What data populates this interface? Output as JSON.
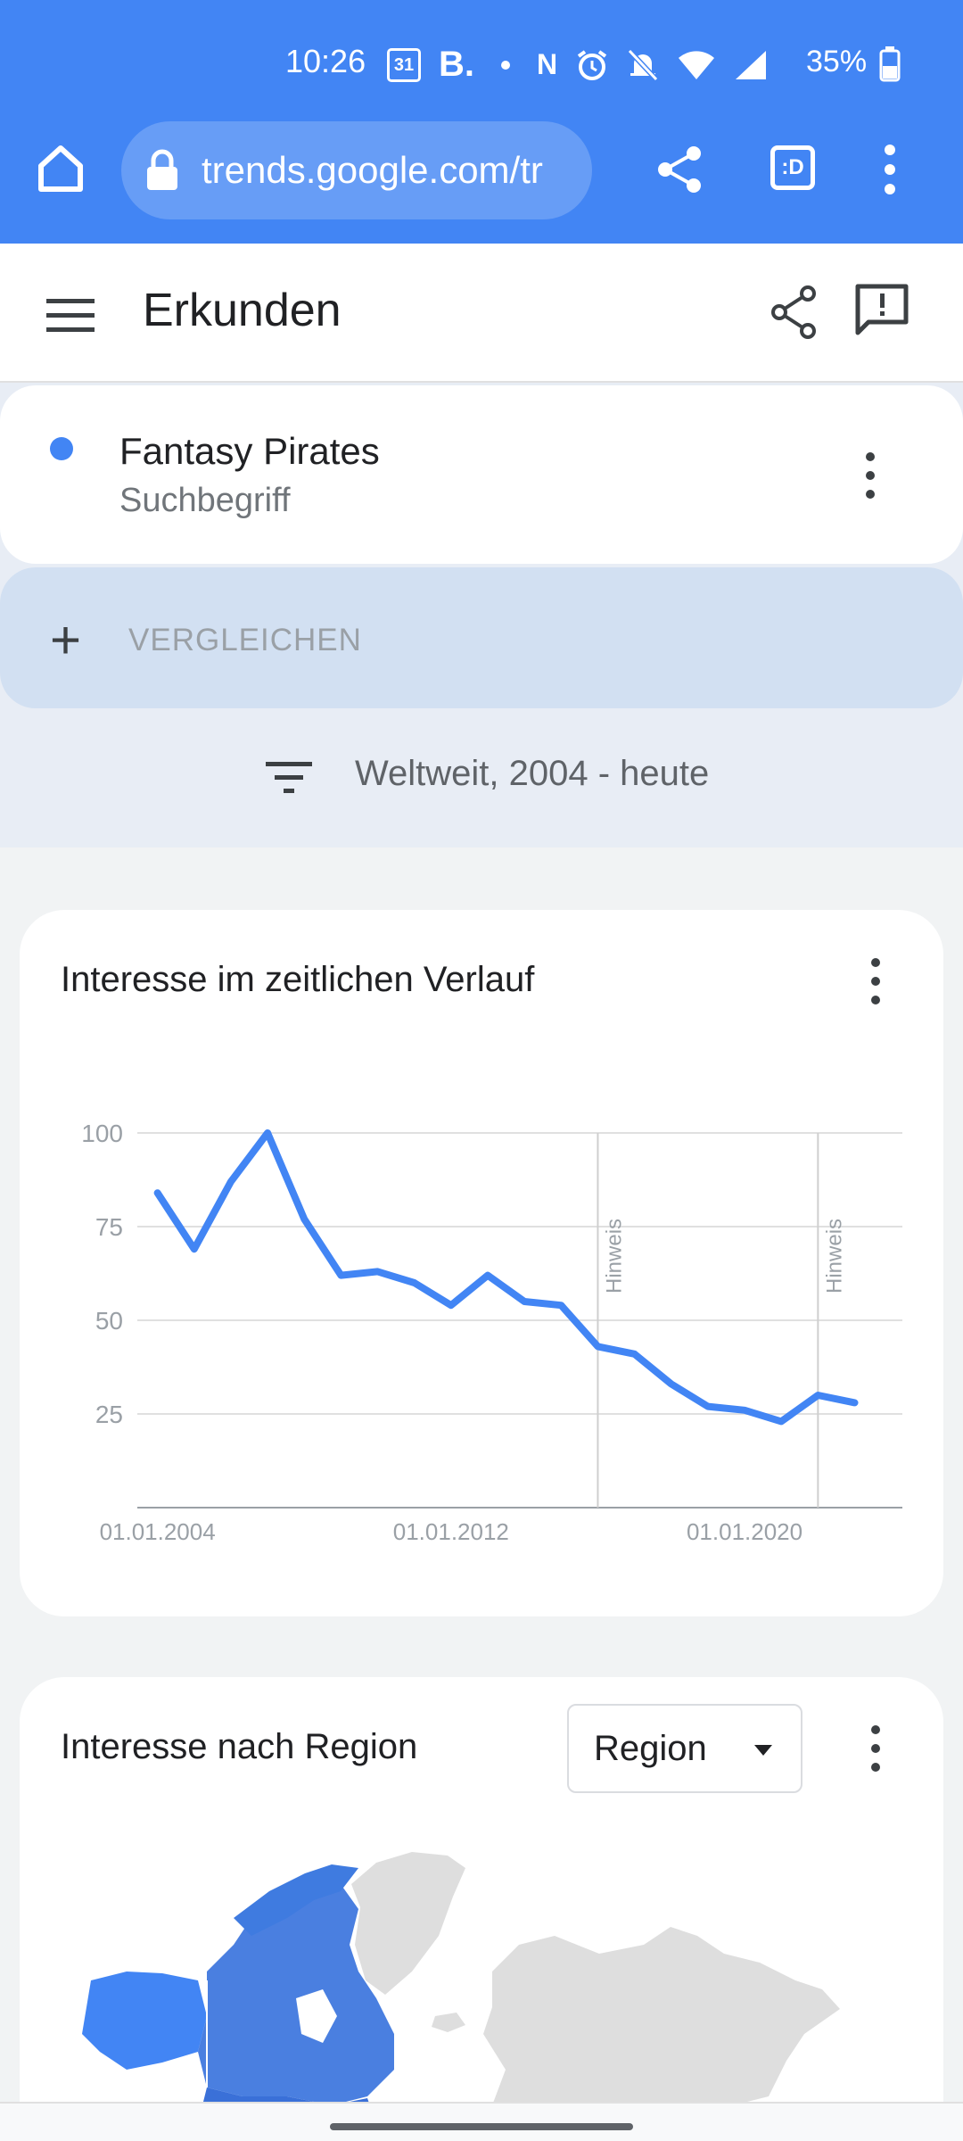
{
  "status_bar": {
    "time": "10:26",
    "calendar": "31",
    "b_icon": "B.",
    "nfc": "N",
    "battery": "35%"
  },
  "browser": {
    "url": "trends.google.com/tr"
  },
  "appbar": {
    "title": "Erkunden"
  },
  "term": {
    "name": "Fantasy Pirates",
    "type": "Suchbegriff",
    "color": "#4285f4"
  },
  "compare": {
    "label": "VERGLEICHEN"
  },
  "filter": {
    "text": "Weltweit, 2004 - heute"
  },
  "interest_over_time": {
    "title": "Interesse im zeitlichen Verlauf",
    "note_label": "Hinweis"
  },
  "chart_data": {
    "type": "line",
    "title": "Interesse im zeitlichen Verlauf",
    "xlabel": "",
    "ylabel": "",
    "ylim": [
      0,
      100
    ],
    "yticks": [
      25,
      50,
      75,
      100
    ],
    "xticks": [
      "01.01.2004",
      "01.01.2012",
      "01.01.2020"
    ],
    "grid": true,
    "x": [
      2004.0,
      2005.0,
      2006.0,
      2007.0,
      2008.0,
      2009.0,
      2010.0,
      2011.0,
      2012.0,
      2013.0,
      2014.0,
      2015.0,
      2016.0,
      2017.0,
      2018.0,
      2019.0,
      2020.0,
      2021.0,
      2022.0,
      2023.0
    ],
    "series": [
      {
        "values": [
          84,
          69,
          87,
          100,
          77,
          62,
          63,
          60,
          54,
          62,
          55,
          54,
          43,
          41,
          33,
          27,
          26,
          23,
          30,
          28
        ]
      }
    ],
    "annotations": [
      {
        "x": 2016.0,
        "label": "Hinweis"
      },
      {
        "x": 2022.0,
        "label": "Hinweis"
      }
    ],
    "line_color": "#4285f4"
  },
  "interest_by_region": {
    "title": "Interesse nach Region",
    "select_value": "Region"
  }
}
